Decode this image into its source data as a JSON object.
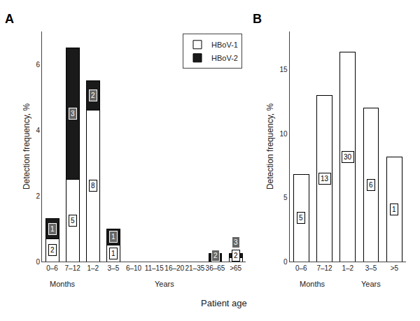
{
  "xlabel": "Patient age",
  "chart_data": [
    {
      "type": "bar",
      "title": "A",
      "stacked": true,
      "categories": [
        "0–6",
        "7–12",
        "1–2",
        "3–5",
        "6–10",
        "11–15",
        "16–20",
        "21–35",
        "36–65",
        ">65"
      ],
      "series": [
        {
          "name": "HBoV-1",
          "color": "#ffffff",
          "edge_color": "#000000",
          "values": [
            0.7,
            2.5,
            4.6,
            0.5,
            0.0,
            0.0,
            0.0,
            0.0,
            0.0,
            0.12
          ],
          "counts": [
            2,
            5,
            8,
            1,
            null,
            null,
            null,
            null,
            null,
            2
          ]
        },
        {
          "name": "HBoV-2",
          "color": "#1a1a1a",
          "edge_color": "#000000",
          "values": [
            0.6,
            4.0,
            0.9,
            0.5,
            0.0,
            0.0,
            0.0,
            0.0,
            0.25,
            0.13
          ],
          "counts": [
            1,
            3,
            2,
            1,
            null,
            null,
            null,
            null,
            2,
            3
          ]
        }
      ],
      "ylabel": "Detection frequency, %",
      "ylim": [
        0,
        7
      ],
      "yticks": [
        0,
        2,
        4,
        6
      ],
      "grid": false,
      "legend": "upper right",
      "annotations": [
        {
          "text": "Months",
          "from": "0–6",
          "to": "7–12"
        },
        {
          "text": "Years",
          "from": "1–2",
          "to": ">65"
        }
      ]
    },
    {
      "type": "bar",
      "title": "B",
      "categories": [
        "0–6",
        "7–12",
        "1–2",
        "3–5",
        ">5"
      ],
      "series": [
        {
          "color": "#ffffff",
          "edge_color": "#000000",
          "values": [
            6.8,
            13.0,
            16.4,
            12.0,
            8.2
          ],
          "counts": [
            5,
            13,
            30,
            6,
            1
          ]
        }
      ],
      "ylabel": "Detection frequency, %",
      "ylim": [
        0,
        18
      ],
      "yticks": [
        0,
        5,
        10,
        15
      ],
      "grid": false,
      "annotations": [
        {
          "text": "Months",
          "from": "0–6",
          "to": "7–12"
        },
        {
          "text": "Years",
          "from": "1–2",
          "to": ">5"
        }
      ]
    }
  ]
}
